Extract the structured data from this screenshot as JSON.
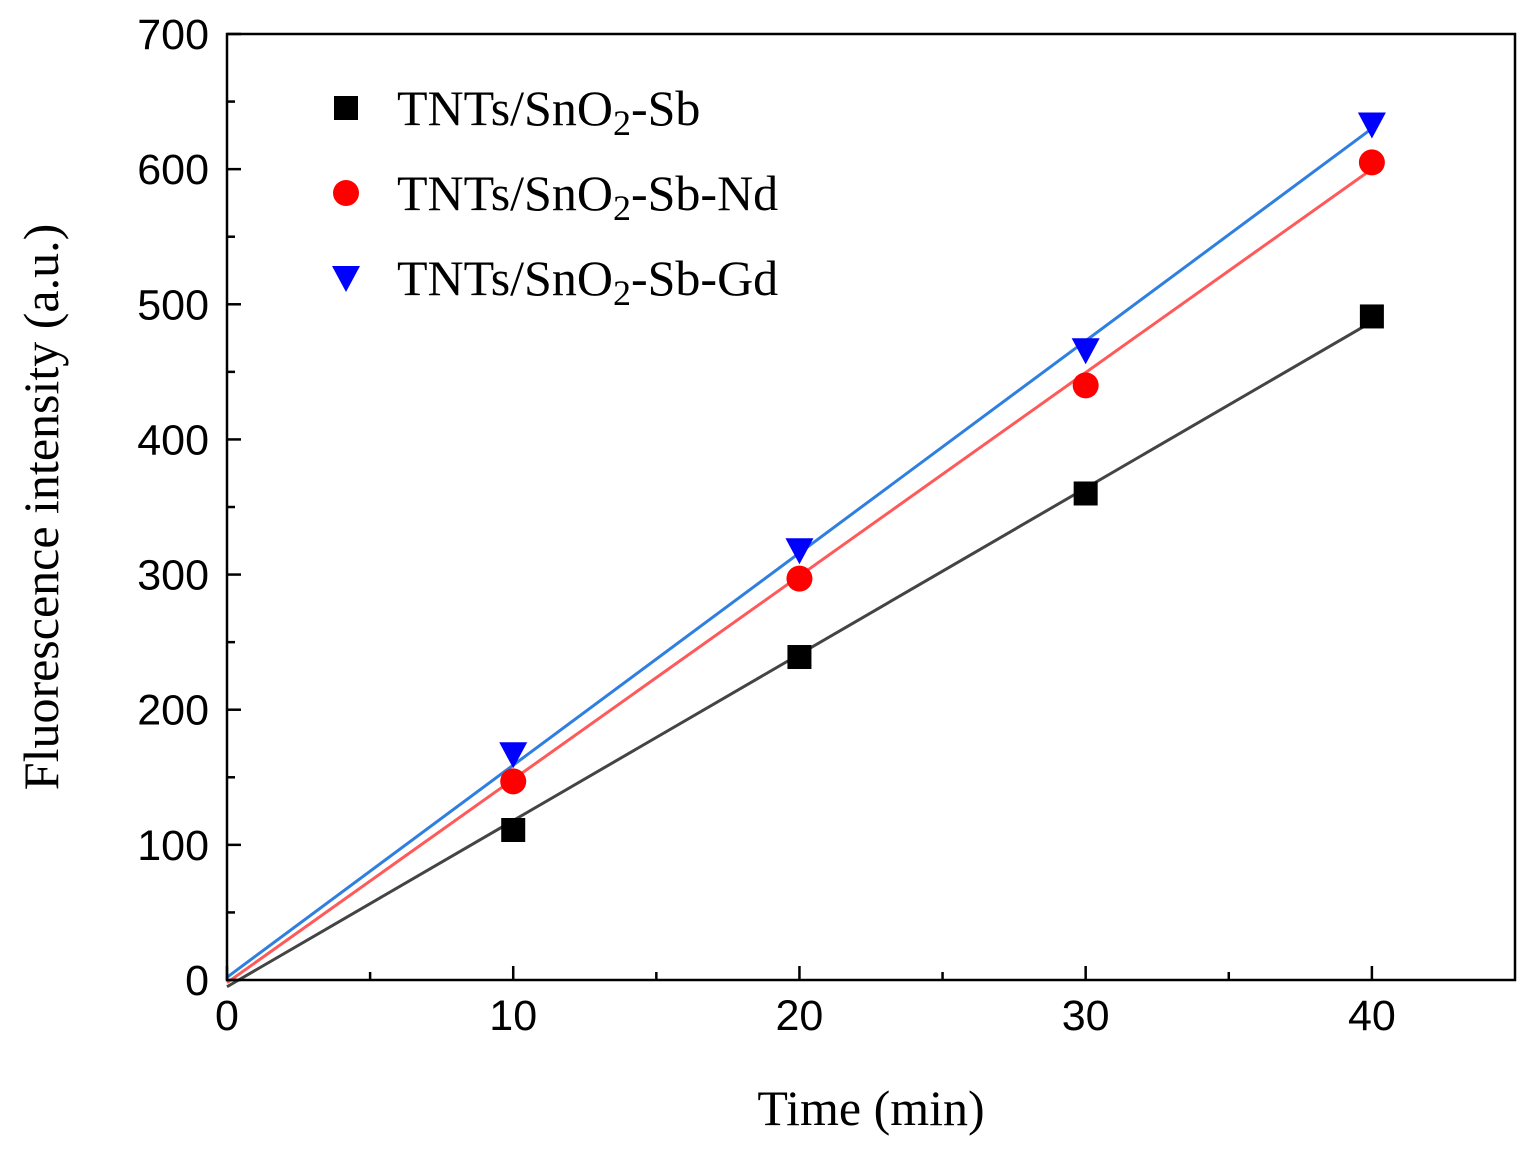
{
  "chart_data": {
    "type": "scatter",
    "xlabel": "Time (min)",
    "ylabel": "Fluorescence intensity (a.u.)",
    "xlim": [
      0,
      45
    ],
    "ylim": [
      0,
      700
    ],
    "x_ticks": [
      0,
      10,
      20,
      30,
      40
    ],
    "x_tick_labels": [
      "0",
      "10",
      "20",
      "30",
      "40"
    ],
    "x_minor_ticks": [
      5,
      15,
      25,
      35
    ],
    "y_ticks": [
      0,
      100,
      200,
      300,
      400,
      500,
      600,
      700
    ],
    "y_tick_labels": [
      "0",
      "100",
      "200",
      "300",
      "400",
      "500",
      "600",
      "700"
    ],
    "grid": false,
    "legend_position": "top-left",
    "series": [
      {
        "name": "TNTs/SnO2-Sb",
        "legend_parts": {
          "prefix": "TNTs/SnO",
          "sub": "2",
          "suffix": "-Sb"
        },
        "marker": "square",
        "marker_color": "#000000",
        "line_color": "#444444",
        "x": [
          10,
          20,
          30,
          40
        ],
        "y": [
          111,
          239,
          360,
          491
        ],
        "fit": {
          "x": [
            0,
            40
          ],
          "y": [
            -5,
            487
          ]
        }
      },
      {
        "name": "TNTs/SnO2-Sb-Nd",
        "legend_parts": {
          "prefix": "TNTs/SnO",
          "sub": "2",
          "suffix": "-Sb-Nd"
        },
        "marker": "circle",
        "marker_color": "#ff0000",
        "line_color": "#ff5a5a",
        "x": [
          10,
          20,
          30,
          40
        ],
        "y": [
          147,
          297,
          440,
          605
        ],
        "fit": {
          "x": [
            0,
            40
          ],
          "y": [
            -2,
            600
          ]
        }
      },
      {
        "name": "TNTs/SnO2-Sb-Gd",
        "legend_parts": {
          "prefix": "TNTs/SnO",
          "sub": "2",
          "suffix": "-Sb-Gd"
        },
        "marker": "triangle",
        "marker_color": "#0000ff",
        "line_color": "#2f7fe0",
        "x": [
          10,
          20,
          30,
          40
        ],
        "y": [
          167,
          318,
          466,
          633
        ],
        "fit": {
          "x": [
            0,
            40
          ],
          "y": [
            2,
            630
          ]
        }
      }
    ]
  }
}
